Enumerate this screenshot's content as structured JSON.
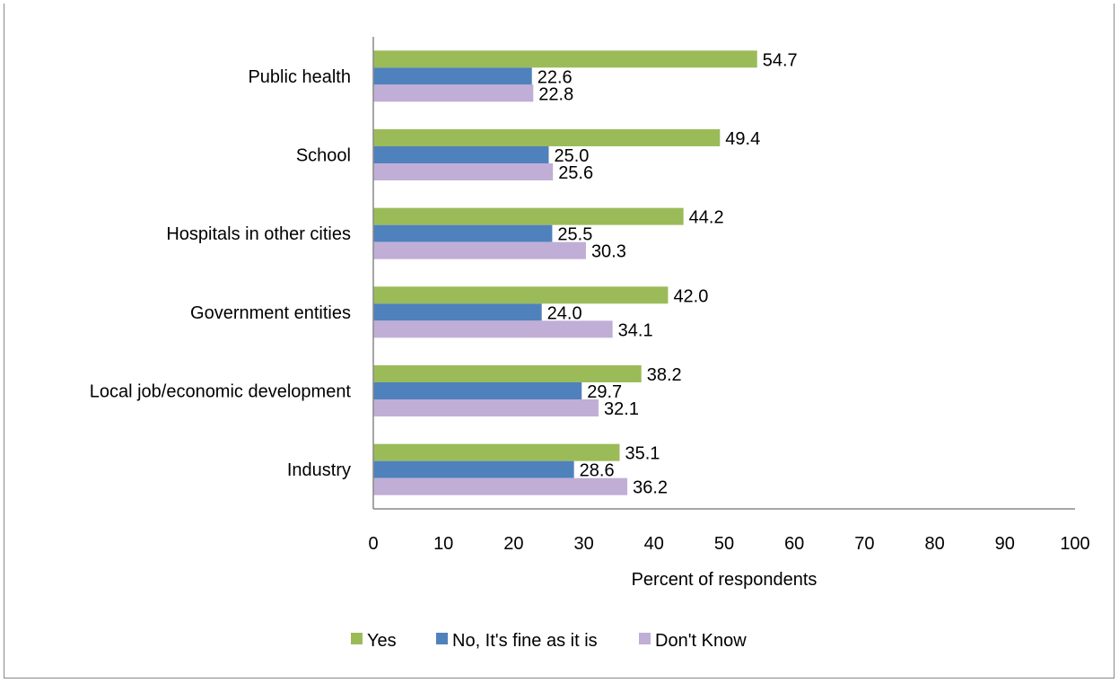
{
  "chart_data": {
    "type": "bar",
    "orientation": "horizontal",
    "categories": [
      "Public health",
      "School",
      "Hospitals in other cities",
      "Government entities",
      "Local job/economic development ",
      "Industry"
    ],
    "series": [
      {
        "name": "Yes",
        "color": "#9bbb59",
        "values": [
          54.7,
          49.4,
          44.2,
          42.0,
          38.2,
          35.1
        ],
        "labels": [
          "54.7",
          "49.4",
          "44.2",
          "42.0",
          "38.2",
          "35.1"
        ]
      },
      {
        "name": "No, It's fine as it is",
        "color": "#4f81bd",
        "values": [
          22.6,
          25.0,
          25.5,
          24.0,
          29.7,
          28.6
        ],
        "labels": [
          "22.6",
          "25.0",
          "25.5",
          "24.0",
          "29.7",
          "28.6"
        ]
      },
      {
        "name": "Don't Know",
        "color": "#c0aed6",
        "values": [
          22.8,
          25.6,
          30.3,
          34.1,
          32.1,
          36.2
        ],
        "labels": [
          "22.8",
          "25.6",
          "30.3",
          "34.1",
          "32.1",
          "36.2"
        ]
      }
    ],
    "xlabel": "Percent of respondents",
    "xlim": [
      0,
      100
    ],
    "xticks": [
      "0",
      "10",
      "20",
      "30",
      "40",
      "50",
      "60",
      "70",
      "80",
      "90",
      "100"
    ],
    "grid": false,
    "legend_position": "bottom"
  }
}
